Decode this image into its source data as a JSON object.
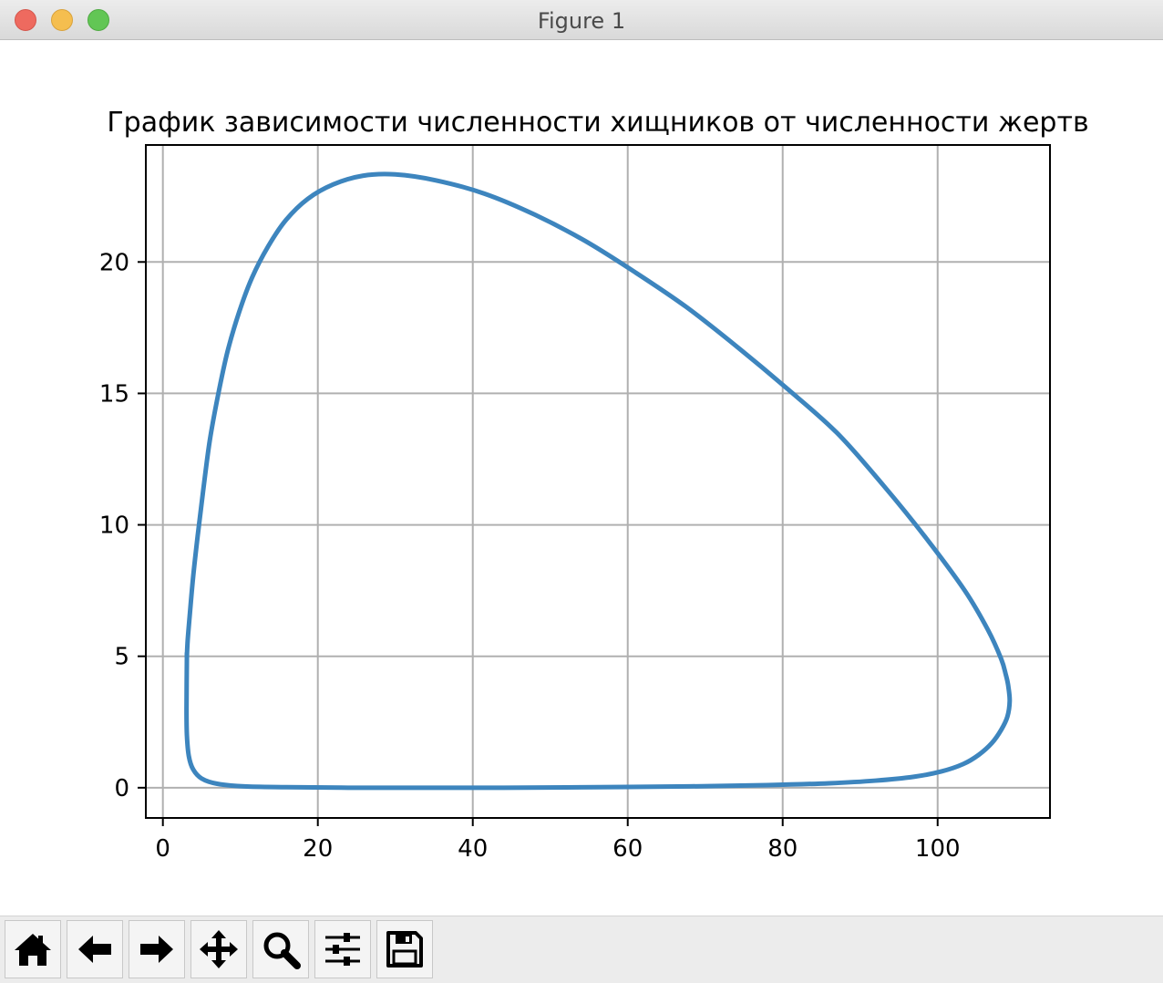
{
  "window": {
    "title": "Figure 1"
  },
  "toolbar": {
    "buttons": [
      {
        "icon": "home-icon"
      },
      {
        "icon": "back-arrow-icon"
      },
      {
        "icon": "forward-arrow-icon"
      },
      {
        "icon": "pan-icon"
      },
      {
        "icon": "zoom-icon"
      },
      {
        "icon": "configure-subplots-icon"
      },
      {
        "icon": "save-icon"
      }
    ]
  },
  "colors": {
    "line": "#3d85be",
    "grid": "#b0b0b0"
  },
  "chart_data": {
    "type": "line",
    "title": "График зависимости численности хищников от численности жертв",
    "xlabel": "",
    "ylabel": "",
    "xlim": [
      -2.2,
      114.5
    ],
    "ylim": [
      -1.15,
      24.45
    ],
    "xticks": [
      0,
      20,
      40,
      60,
      80,
      100
    ],
    "yticks": [
      0,
      5,
      10,
      15,
      20
    ],
    "grid": true,
    "series": [
      {
        "x": [
          3.1,
          3.05,
          3.1,
          3.35,
          3.9,
          5.0,
          7.0,
          10.5,
          16,
          24,
          33,
          44,
          56,
          68,
          78,
          86,
          92,
          97,
          100.5,
          103.3,
          105.3,
          107,
          108.2,
          109,
          109.3,
          109.1,
          108.8,
          108.2,
          106.5,
          103.5,
          98.5,
          93,
          87,
          80.5,
          74,
          67.5,
          61,
          54.5,
          48,
          41.5,
          35.3,
          30,
          25.8,
          22,
          18.7,
          15.9,
          13.6,
          11.5,
          9.85,
          8.35,
          7.1,
          6.05,
          5.2,
          4.5,
          3.9,
          3.45,
          3.2,
          3.1
        ],
        "y": [
          5.0,
          3.0,
          2.0,
          1.2,
          0.7,
          0.35,
          0.15,
          0.05,
          0.02,
          0.0,
          0.0,
          0.0,
          0.02,
          0.05,
          0.1,
          0.17,
          0.27,
          0.42,
          0.62,
          0.9,
          1.25,
          1.7,
          2.2,
          2.7,
          3.3,
          3.9,
          4.3,
          4.9,
          6.0,
          7.5,
          9.5,
          11.5,
          13.5,
          15.2,
          16.8,
          18.3,
          19.6,
          20.8,
          21.8,
          22.6,
          23.1,
          23.33,
          23.28,
          22.95,
          22.4,
          21.6,
          20.6,
          19.4,
          18.1,
          16.6,
          14.9,
          13.2,
          11.3,
          9.6,
          8.0,
          6.5,
          5.6,
          5.0
        ]
      }
    ]
  }
}
